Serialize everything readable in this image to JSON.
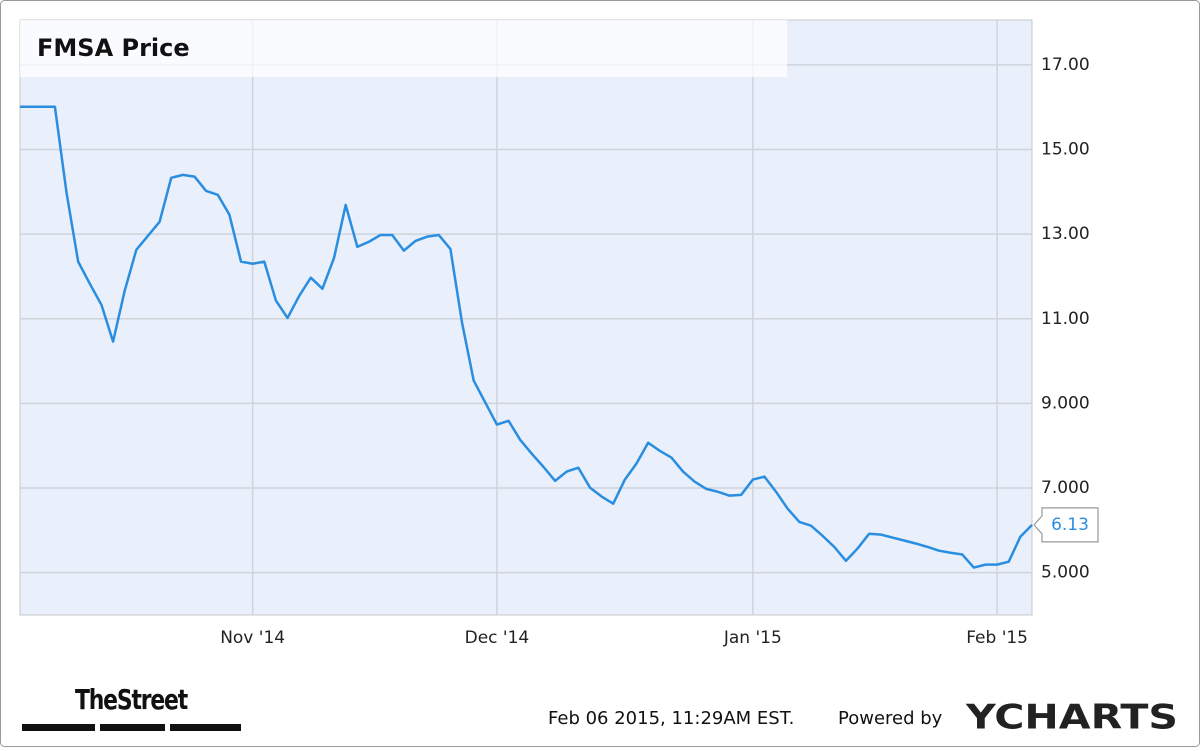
{
  "chart_data": {
    "type": "line",
    "title": "FMSA Price",
    "categories": [
      null,
      null,
      null,
      null,
      null,
      null,
      null,
      null,
      null,
      null,
      null,
      null,
      null,
      null,
      null,
      null,
      null,
      null,
      null,
      null,
      "Nov '14",
      null,
      null,
      null,
      null,
      null,
      null,
      null,
      null,
      null,
      null,
      null,
      null,
      null,
      null,
      null,
      null,
      null,
      null,
      null,
      null,
      "Dec '14",
      null,
      null,
      null,
      null,
      null,
      null,
      null,
      null,
      null,
      null,
      null,
      null,
      null,
      null,
      null,
      null,
      null,
      null,
      null,
      null,
      null,
      "Jan '15",
      null,
      null,
      null,
      null,
      null,
      null,
      null,
      null,
      null,
      null,
      null,
      null,
      null,
      null,
      null,
      null,
      null,
      null,
      null,
      null,
      "Feb '15",
      null,
      null,
      null
    ],
    "values": [
      16.01,
      16.01,
      16.01,
      16.01,
      13.98,
      12.35,
      11.83,
      11.33,
      10.46,
      11.66,
      12.63,
      12.96,
      13.29,
      14.33,
      14.4,
      14.36,
      14.02,
      13.93,
      13.46,
      12.35,
      12.3,
      12.35,
      11.43,
      11.02,
      11.54,
      11.97,
      11.71,
      12.44,
      13.69,
      12.7,
      12.82,
      12.98,
      12.98,
      12.61,
      12.84,
      12.94,
      12.98,
      12.65,
      10.91,
      9.54,
      9.02,
      8.5,
      8.59,
      8.14,
      7.81,
      7.5,
      7.17,
      7.39,
      7.48,
      7.01,
      6.8,
      6.63,
      7.2,
      7.58,
      8.07,
      7.88,
      7.72,
      7.39,
      7.15,
      6.98,
      6.91,
      6.82,
      6.84,
      7.2,
      7.27,
      6.91,
      6.51,
      6.2,
      6.11,
      5.87,
      5.61,
      5.28,
      5.57,
      5.92,
      5.9,
      5.83,
      5.76,
      5.69,
      5.61,
      5.52,
      5.47,
      5.43,
      5.12,
      5.19,
      5.19,
      5.26,
      5.85,
      6.13
    ],
    "color": "#2a8ee0",
    "ylim": [
      4.0,
      18.06
    ],
    "yticks": [
      {
        "value": 5,
        "label": "5.000"
      },
      {
        "value": 7,
        "label": "7.000"
      },
      {
        "value": 9,
        "label": "9.000"
      },
      {
        "value": 11,
        "label": "11.00"
      },
      {
        "value": 13,
        "label": "13.00"
      },
      {
        "value": 15,
        "label": "15.00"
      },
      {
        "value": 17,
        "label": "17.00"
      }
    ],
    "grid": true,
    "publisher": "TheStreet",
    "timestamp": "Feb 06 2015, 11:29AM EST.",
    "credit": "Powered by",
    "brand": "YCHARTS"
  }
}
